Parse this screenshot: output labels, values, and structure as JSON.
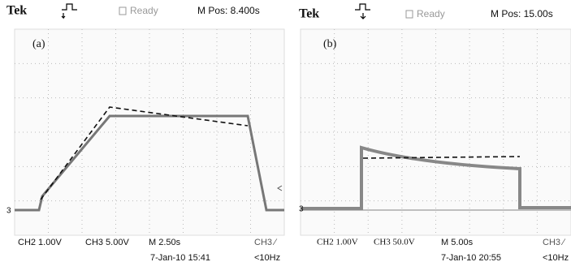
{
  "panels": [
    {
      "brand": "Tek",
      "status": "Ready",
      "position": "M Pos: 8.400s",
      "label": "(a)",
      "marker": "3",
      "ch2": "CH2 1.00V",
      "ch3": "CH3 5.00V",
      "timebase": "M 2.50s",
      "trigger": "CH3 ∕",
      "date": "7-Jan-10 15:41",
      "freq": "<10Hz"
    },
    {
      "brand": "Tek",
      "status": "Ready",
      "position": "M Pos: 15.00s",
      "label": "(b)",
      "marker": "3",
      "ch2": "CH2 1.00V",
      "ch3": "CH3 50.0V",
      "timebase": "M 5.00s",
      "trigger": "CH3 ∕",
      "date": "7-Jan-10 20:55",
      "freq": "<10Hz"
    }
  ]
}
